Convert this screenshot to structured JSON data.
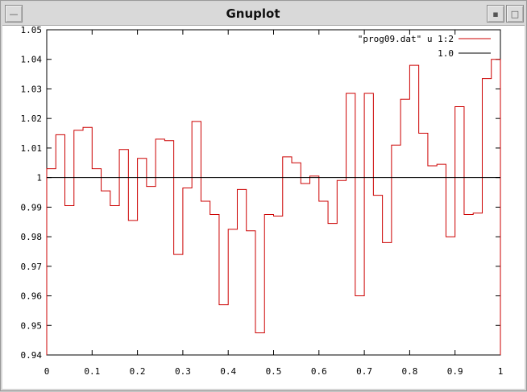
{
  "window": {
    "title": "Gnuplot",
    "controls": {
      "menu_icon": "window-menu-icon",
      "minimize_icon": "minimize-icon",
      "maximize_icon": "maximize-icon"
    }
  },
  "chart_data": {
    "type": "line",
    "style": "steps",
    "xlim": [
      0,
      1
    ],
    "ylim": [
      0.94,
      1.05
    ],
    "xticks": [
      "0",
      "0.1",
      "0.2",
      "0.3",
      "0.4",
      "0.5",
      "0.6",
      "0.7",
      "0.8",
      "0.9",
      "1"
    ],
    "yticks": [
      "0.94",
      "0.95",
      "0.96",
      "0.97",
      "0.98",
      "0.99",
      "1",
      "1.01",
      "1.02",
      "1.03",
      "1.04",
      "1.05"
    ],
    "grid": false,
    "legend_position": "top-right",
    "series": [
      {
        "name": "\"prog09.dat\" u 1:2",
        "color": "#cc0000",
        "x": [
          0,
          0.02,
          0.04,
          0.06,
          0.08,
          0.1,
          0.12,
          0.14,
          0.16,
          0.18,
          0.2,
          0.22,
          0.24,
          0.26,
          0.28,
          0.3,
          0.32,
          0.34,
          0.36,
          0.38,
          0.4,
          0.42,
          0.44,
          0.46,
          0.48,
          0.5,
          0.52,
          0.54,
          0.56,
          0.58,
          0.6,
          0.62,
          0.64,
          0.66,
          0.68,
          0.7,
          0.72,
          0.74,
          0.76,
          0.78,
          0.8,
          0.82,
          0.84,
          0.86,
          0.88,
          0.9,
          0.92,
          0.94,
          0.96,
          0.98,
          1.0
        ],
        "y": [
          1.003,
          1.0145,
          0.9905,
          1.016,
          1.017,
          1.003,
          0.9955,
          0.9905,
          1.0095,
          0.9855,
          1.0065,
          0.997,
          1.013,
          1.0125,
          0.974,
          0.9965,
          1.019,
          0.992,
          0.9875,
          0.957,
          0.9825,
          0.996,
          0.982,
          0.9475,
          0.9875,
          0.987,
          1.007,
          1.005,
          0.998,
          1.0005,
          0.992,
          0.9845,
          0.999,
          1.0285,
          0.96,
          1.0285,
          0.994,
          0.978,
          1.011,
          1.0265,
          1.038,
          1.015,
          1.004,
          1.0045,
          0.98,
          1.024,
          0.9875,
          0.988,
          1.0335,
          1.04,
          1.04
        ]
      },
      {
        "name": "1.0",
        "color": "#000000",
        "x": [
          0,
          1
        ],
        "y": [
          1.0,
          1.0
        ]
      }
    ]
  }
}
